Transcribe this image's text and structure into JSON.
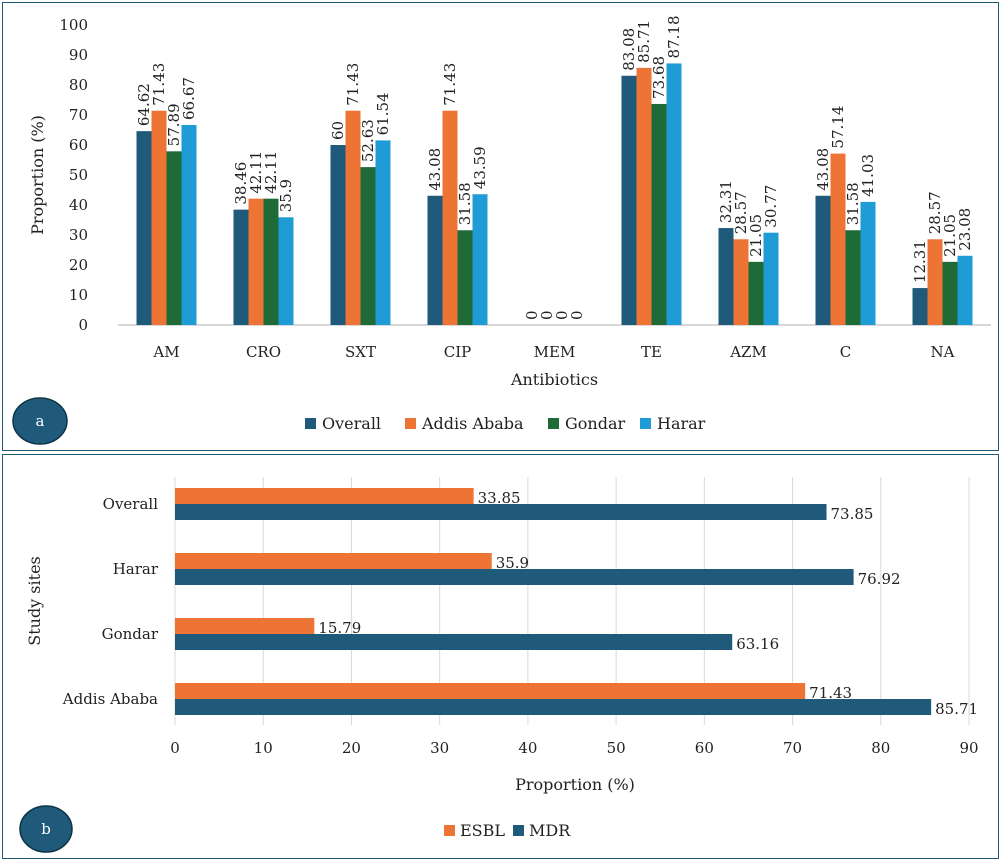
{
  "chart_data": [
    {
      "panel_label": "a",
      "type": "bar",
      "orientation": "vertical",
      "xlabel": "Antibiotics",
      "ylabel": "Proportion (%)",
      "ylim": [
        0,
        100
      ],
      "yticks": [
        0,
        10,
        20,
        30,
        40,
        50,
        60,
        70,
        80,
        90,
        100
      ],
      "grid": false,
      "legend_position": "bottom",
      "categories": [
        "AM",
        "CRO",
        "SXT",
        "CIP",
        "MEM",
        "TE",
        "AZM",
        "C",
        "NA"
      ],
      "series": [
        {
          "name": "Overall",
          "color": "#1f5a7a",
          "values": [
            64.62,
            38.46,
            60,
            43.08,
            0,
            83.08,
            32.31,
            43.08,
            12.31
          ]
        },
        {
          "name": "Addis Ababa",
          "color": "#ed7434",
          "values": [
            71.43,
            42.11,
            71.43,
            71.43,
            0,
            85.71,
            28.57,
            57.14,
            28.57
          ]
        },
        {
          "name": "Gondar",
          "color": "#1f6b38",
          "values": [
            57.89,
            42.11,
            52.63,
            31.58,
            0,
            73.68,
            21.05,
            31.58,
            21.05
          ]
        },
        {
          "name": "Harar",
          "color": "#1f9bd5",
          "values": [
            66.67,
            35.9,
            61.54,
            43.59,
            0,
            87.18,
            30.77,
            41.03,
            23.08
          ]
        }
      ]
    },
    {
      "panel_label": "b",
      "type": "bar",
      "orientation": "horizontal",
      "xlabel": "Proportion (%)",
      "ylabel": "Study sites",
      "xlim": [
        0,
        90
      ],
      "xticks": [
        0,
        10,
        20,
        30,
        40,
        50,
        60,
        70,
        80,
        90
      ],
      "grid": true,
      "legend_position": "bottom",
      "categories": [
        "Overall",
        "Harar",
        "Gondar",
        "Addis Ababa"
      ],
      "series": [
        {
          "name": "ESBL",
          "color": "#ed7434",
          "values": [
            33.85,
            35.9,
            15.79,
            71.43
          ]
        },
        {
          "name": "MDR",
          "color": "#1f5a7a",
          "values": [
            73.85,
            76.92,
            63.16,
            85.71
          ]
        }
      ]
    }
  ],
  "badge_color": "#1f5a7a"
}
